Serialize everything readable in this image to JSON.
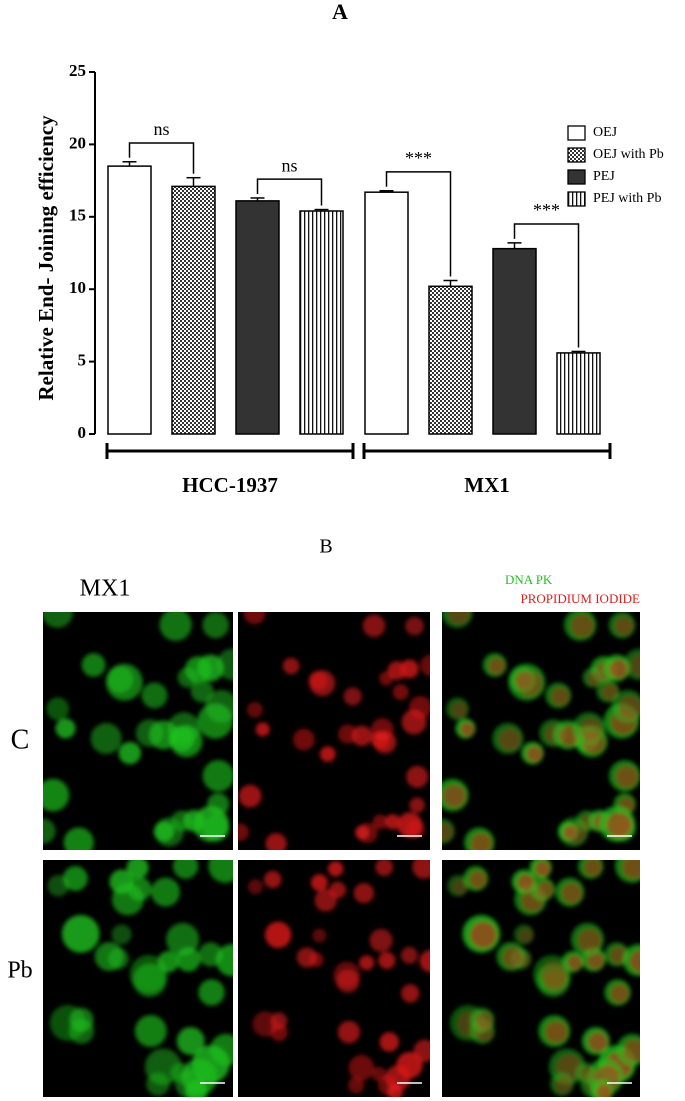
{
  "chart_data": {
    "type": "bar",
    "panel_label": "A",
    "y_label": "Relative End- Joining efficiency",
    "categories": [
      "HCC-1937",
      "MX1"
    ],
    "series": [
      {
        "name": "OEJ",
        "color": "#ffffff",
        "pattern": "solid",
        "values": [
          18.5,
          16.7
        ],
        "errors": [
          0.3,
          0.1
        ]
      },
      {
        "name": "OEJ with Pb",
        "color": "#333333",
        "pattern": "crosshatch",
        "values": [
          17.1,
          10.2
        ],
        "errors": [
          0.6,
          0.4
        ]
      },
      {
        "name": "PEJ",
        "color": "#333333",
        "pattern": "solid",
        "values": [
          16.1,
          12.8
        ],
        "errors": [
          0.2,
          0.4
        ]
      },
      {
        "name": "PEJ with Pb",
        "color": "#111111",
        "pattern": "vertical-stripes",
        "values": [
          15.4,
          5.6
        ],
        "errors": [
          0.1,
          0.1
        ]
      }
    ],
    "annotations": [
      "ns",
      "ns",
      "***",
      "***"
    ],
    "ylim": [
      0,
      25
    ],
    "yticks": [
      0,
      5,
      10,
      15,
      20,
      25
    ],
    "legend": "upper right"
  },
  "panel_b": {
    "label": "B",
    "title": "MX1",
    "channels": [
      {
        "name": "DNA PK",
        "color": "#1fc21f"
      },
      {
        "name": "PROPIDIUM IODIDE",
        "color": "#e01b1b"
      }
    ],
    "rows": [
      "C",
      "Pb"
    ]
  }
}
